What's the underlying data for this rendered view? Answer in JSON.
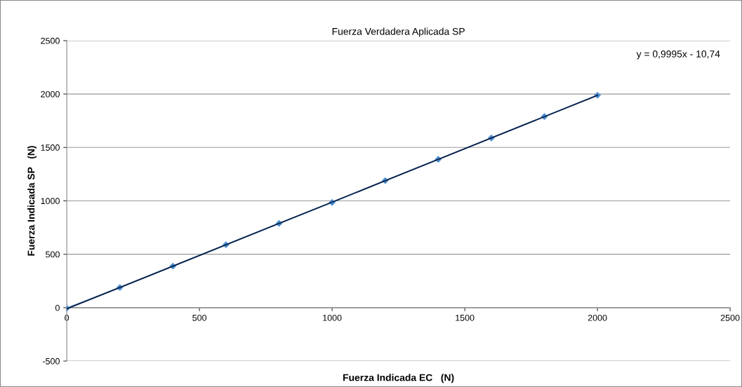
{
  "chart_data": {
    "type": "line",
    "title": "Fuerza Verdadera Aplicada SP",
    "xlabel": "Fuerza Indicada EC   (N)",
    "ylabel": "Fuerza Indicada SP   (N)",
    "x": [
      0,
      200,
      400,
      600,
      800,
      1000,
      1200,
      1400,
      1600,
      1800,
      2000
    ],
    "series": [
      {
        "color": "#4a8ed0",
        "values": [
          -5,
          189,
          389,
          589,
          789,
          985,
          1189,
          1389,
          1589,
          1789,
          1989
        ],
        "marker": "diamond"
      },
      {
        "type": "line",
        "color": "#0b1f45",
        "x": [
          0,
          2000
        ],
        "values": [
          -11,
          1988
        ],
        "marker": "none"
      }
    ],
    "annotations": [
      "y = 0,9995x - 10,74"
    ],
    "xlim": [
      0,
      2500
    ],
    "xticks": [
      0,
      500,
      1000,
      1500,
      2000,
      2500
    ],
    "ylim": [
      -500,
      2500
    ],
    "yticks": [
      -500,
      0,
      500,
      1000,
      1500,
      2000,
      2500
    ],
    "grid": "y",
    "legend": false
  }
}
